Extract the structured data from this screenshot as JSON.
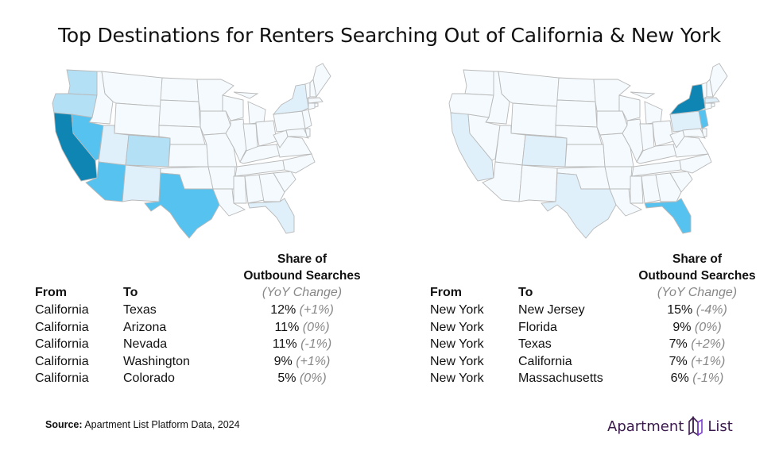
{
  "title": "Top Destinations for Renters Searching Out of California & New York",
  "colors": {
    "dark": "#0f85b3",
    "mid": "#55c2ef",
    "light": "#b4e0f5",
    "pale": "#dff0fb",
    "none": "#f4fafd"
  },
  "maps": {
    "left": {
      "origin": "California",
      "highlighted": {
        "CA": "dark",
        "NV": "mid",
        "AZ": "mid",
        "TX": "mid",
        "WA": "light",
        "CO": "light",
        "OR": "light",
        "UT": "pale",
        "NM": "pale",
        "NY": "pale",
        "FL": "pale"
      }
    },
    "right": {
      "origin": "New York",
      "highlighted": {
        "NY": "dark",
        "NJ": "mid",
        "FL": "mid",
        "TX": "pale",
        "CA": "pale",
        "MA": "pale",
        "PA": "pale",
        "CO": "pale"
      }
    }
  },
  "tables": {
    "left": {
      "share_header_1": "Share of",
      "share_header_2": "Outbound Searches",
      "col_from": "From",
      "col_to": "To",
      "col_yoy": "(YoY Change)",
      "rows": [
        {
          "from": "California",
          "to": "Texas",
          "share": "12%",
          "change": "(+1%)"
        },
        {
          "from": "California",
          "to": "Arizona",
          "share": "11%",
          "change": "(0%)"
        },
        {
          "from": "California",
          "to": "Nevada",
          "share": "11%",
          "change": "(-1%)"
        },
        {
          "from": "California",
          "to": "Washington",
          "share": "9%",
          "change": "(+1%)"
        },
        {
          "from": "California",
          "to": "Colorado",
          "share": "5%",
          "change": "(0%)"
        }
      ]
    },
    "right": {
      "share_header_1": "Share of",
      "share_header_2": "Outbound Searches",
      "col_from": "From",
      "col_to": "To",
      "col_yoy": "(YoY Change)",
      "rows": [
        {
          "from": "New York",
          "to": "New Jersey",
          "share": "15%",
          "change": "(-4%)"
        },
        {
          "from": "New York",
          "to": "Florida",
          "share": "9%",
          "change": "(0%)"
        },
        {
          "from": "New York",
          "to": "Texas",
          "share": "7%",
          "change": "(+2%)"
        },
        {
          "from": "New York",
          "to": "California",
          "share": "7%",
          "change": "(+1%)"
        },
        {
          "from": "New York",
          "to": "Massachusetts",
          "share": "6%",
          "change": "(-1%)"
        }
      ]
    }
  },
  "source": {
    "label": "Source:",
    "text": "Apartment List Platform Data, 2024"
  },
  "logo": {
    "word1": "Apartment",
    "word2": "List"
  }
}
